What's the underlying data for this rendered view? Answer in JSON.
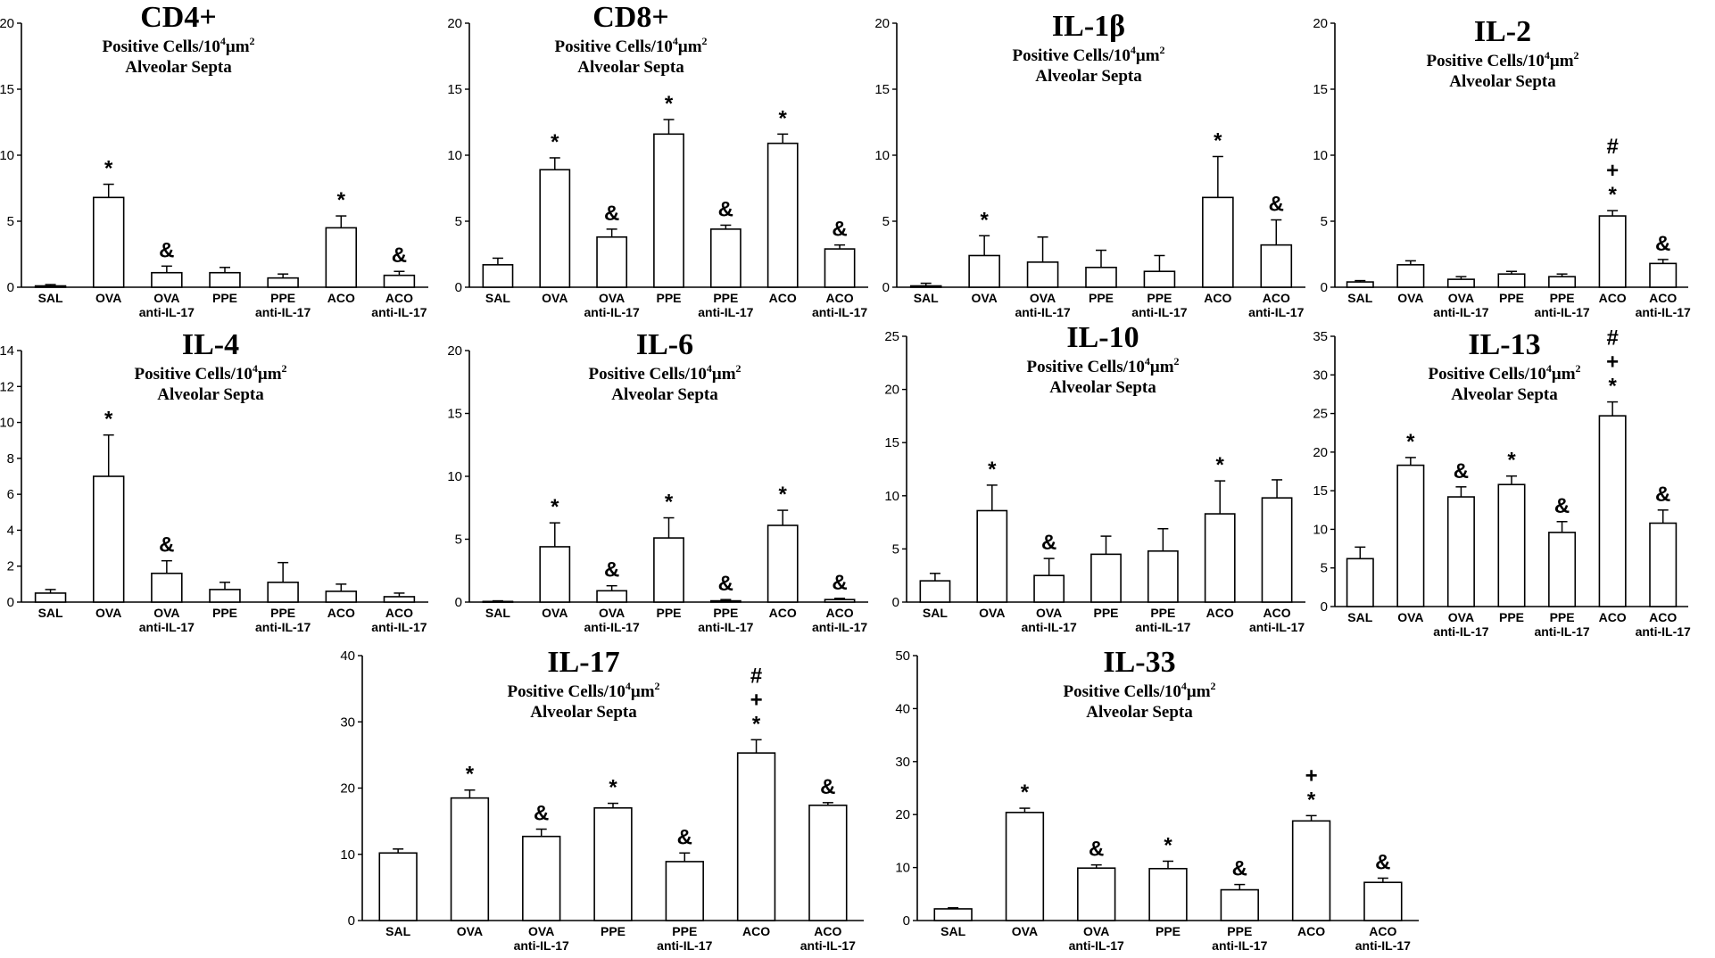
{
  "figure": {
    "subtitle_prefix": "Positive Cells/10",
    "subtitle_exp": "4",
    "subtitle_unit": "μm",
    "subtitle_unit_exp": "2",
    "subtitle_line2": "Alveolar Septa"
  },
  "chart_data": [
    {
      "type": "bar",
      "title": "CD4+",
      "categories": [
        "SAL",
        "OVA",
        "OVA anti-IL-17",
        "PPE",
        "PPE anti-IL-17",
        "ACO",
        "ACO anti-IL-17"
      ],
      "category_lines": [
        [
          "SAL"
        ],
        [
          "OVA"
        ],
        [
          "OVA",
          "anti-IL-17"
        ],
        [
          "PPE"
        ],
        [
          "PPE",
          "anti-IL-17"
        ],
        [
          "ACO"
        ],
        [
          "ACO",
          "anti-IL-17"
        ]
      ],
      "values": [
        0.1,
        6.8,
        1.1,
        1.1,
        0.7,
        4.5,
        0.9
      ],
      "errors": [
        0.1,
        1.0,
        0.5,
        0.4,
        0.3,
        0.9,
        0.3
      ],
      "significance": [
        "",
        "*",
        "&",
        "",
        "",
        "*",
        "&"
      ],
      "ylabel": "Positive Cells/10^4 μm^2 Alveolar Septa",
      "ylim": [
        0,
        20
      ],
      "yticks": [
        0,
        5,
        10,
        15,
        20
      ]
    },
    {
      "type": "bar",
      "title": "CD8+",
      "categories": [
        "SAL",
        "OVA",
        "OVA anti-IL-17",
        "PPE",
        "PPE anti-IL-17",
        "ACO",
        "ACO anti-IL-17"
      ],
      "category_lines": [
        [
          "SAL"
        ],
        [
          "OVA"
        ],
        [
          "OVA",
          "anti-IL-17"
        ],
        [
          "PPE"
        ],
        [
          "PPE",
          "anti-IL-17"
        ],
        [
          "ACO"
        ],
        [
          "ACO",
          "anti-IL-17"
        ]
      ],
      "values": [
        1.7,
        8.9,
        3.8,
        11.6,
        4.4,
        10.9,
        2.9
      ],
      "errors": [
        0.5,
        0.9,
        0.6,
        1.1,
        0.3,
        0.7,
        0.3
      ],
      "significance": [
        "",
        "*",
        "&",
        "*",
        "&",
        "*",
        "&"
      ],
      "ylabel": "Positive Cells/10^4 μm^2 Alveolar Septa",
      "ylim": [
        0,
        20
      ],
      "yticks": [
        0,
        5,
        10,
        15,
        20
      ]
    },
    {
      "type": "bar",
      "title": "IL-1β",
      "categories": [
        "SAL",
        "OVA",
        "OVA anti-IL-17",
        "PPE",
        "PPE anti-IL-17",
        "ACO",
        "ACO anti-IL-17"
      ],
      "category_lines": [
        [
          "SAL"
        ],
        [
          "OVA"
        ],
        [
          "OVA",
          "anti-IL-17"
        ],
        [
          "PPE"
        ],
        [
          "PPE",
          "anti-IL-17"
        ],
        [
          "ACO"
        ],
        [
          "ACO",
          "anti-IL-17"
        ]
      ],
      "values": [
        0.1,
        2.4,
        1.9,
        1.5,
        1.2,
        6.8,
        3.2
      ],
      "errors": [
        0.2,
        1.5,
        1.9,
        1.3,
        1.2,
        3.1,
        1.9
      ],
      "significance": [
        "",
        "*",
        "",
        "",
        "",
        "*",
        "&"
      ],
      "ylabel": "Positive Cells/10^4 μm^2 Alveolar Septa",
      "ylim": [
        0,
        20
      ],
      "yticks": [
        0,
        5,
        10,
        15,
        20
      ]
    },
    {
      "type": "bar",
      "title": "IL-2",
      "categories": [
        "SAL",
        "OVA",
        "OVA anti-IL-17",
        "PPE",
        "PPE anti-IL-17",
        "ACO",
        "ACO anti-IL-17"
      ],
      "category_lines": [
        [
          "SAL"
        ],
        [
          "OVA"
        ],
        [
          "OVA",
          "anti-IL-17"
        ],
        [
          "PPE"
        ],
        [
          "PPE",
          "anti-IL-17"
        ],
        [
          "ACO"
        ],
        [
          "ACO",
          "anti-IL-17"
        ]
      ],
      "values": [
        0.4,
        1.7,
        0.6,
        1.0,
        0.8,
        5.4,
        1.8
      ],
      "errors": [
        0.1,
        0.3,
        0.2,
        0.2,
        0.2,
        0.4,
        0.3
      ],
      "significance": [
        "",
        "",
        "",
        "",
        "",
        "#\n+\n*",
        "&"
      ],
      "ylabel": "Positive Cells/10^4 μm^2 Alveolar Septa",
      "ylim": [
        0,
        20
      ],
      "yticks": [
        0,
        5,
        10,
        15,
        20
      ]
    },
    {
      "type": "bar",
      "title": "IL-4",
      "categories": [
        "SAL",
        "OVA",
        "OVA anti-IL-17",
        "PPE",
        "PPE anti-IL-17",
        "ACO",
        "ACO anti-IL-17"
      ],
      "category_lines": [
        [
          "SAL"
        ],
        [
          "OVA"
        ],
        [
          "OVA",
          "anti-IL-17"
        ],
        [
          "PPE"
        ],
        [
          "PPE",
          "anti-IL-17"
        ],
        [
          "ACO"
        ],
        [
          "ACO",
          "anti-IL-17"
        ]
      ],
      "values": [
        0.5,
        7.0,
        1.6,
        0.7,
        1.1,
        0.6,
        0.3
      ],
      "errors": [
        0.2,
        2.3,
        0.7,
        0.4,
        1.1,
        0.4,
        0.2
      ],
      "significance": [
        "",
        "*",
        "&",
        "",
        "",
        "",
        ""
      ],
      "ylabel": "Positive Cells/10^4 μm^2 Alveolar Septa",
      "ylim": [
        0,
        14
      ],
      "yticks": [
        0,
        2,
        4,
        6,
        8,
        10,
        12,
        14
      ]
    },
    {
      "type": "bar",
      "title": "IL-6",
      "categories": [
        "SAL",
        "OVA",
        "OVA anti-IL-17",
        "PPE",
        "PPE anti-IL-17",
        "ACO",
        "ACO anti-IL-17"
      ],
      "category_lines": [
        [
          "SAL"
        ],
        [
          "OVA"
        ],
        [
          "OVA",
          "anti-IL-17"
        ],
        [
          "PPE"
        ],
        [
          "PPE",
          "anti-IL-17"
        ],
        [
          "ACO"
        ],
        [
          "ACO",
          "anti-IL-17"
        ]
      ],
      "values": [
        0.05,
        4.4,
        0.9,
        5.1,
        0.1,
        6.1,
        0.2
      ],
      "errors": [
        0.05,
        1.9,
        0.4,
        1.6,
        0.1,
        1.2,
        0.1
      ],
      "significance": [
        "",
        "*",
        "&",
        "*",
        "&",
        "*",
        "&"
      ],
      "ylabel": "Positive Cells/10^4 μm^2 Alveolar Septa",
      "ylim": [
        0,
        20
      ],
      "yticks": [
        0,
        5,
        10,
        15,
        20
      ]
    },
    {
      "type": "bar",
      "title": "IL-10",
      "categories": [
        "SAL",
        "OVA",
        "OVA anti-IL-17",
        "PPE",
        "PPE anti-IL-17",
        "ACO",
        "ACO anti-IL-17"
      ],
      "category_lines": [
        [
          "SAL"
        ],
        [
          "OVA"
        ],
        [
          "OVA",
          "anti-IL-17"
        ],
        [
          "PPE"
        ],
        [
          "PPE",
          "anti-IL-17"
        ],
        [
          "ACO"
        ],
        [
          "ACO",
          "anti-IL-17"
        ]
      ],
      "values": [
        2.0,
        8.6,
        2.5,
        4.5,
        4.8,
        8.3,
        9.8
      ],
      "errors": [
        0.7,
        2.4,
        1.6,
        1.7,
        2.1,
        3.1,
        1.7
      ],
      "significance": [
        "",
        "*",
        "&",
        "",
        "",
        "*",
        ""
      ],
      "ylabel": "Positive Cells/10^4 μm^2 Alveolar Septa",
      "ylim": [
        0,
        25
      ],
      "yticks": [
        0,
        5,
        10,
        15,
        20,
        25
      ]
    },
    {
      "type": "bar",
      "title": "IL-13",
      "categories": [
        "SAL",
        "OVA",
        "OVA anti-IL-17",
        "PPE",
        "PPE anti-IL-17",
        "ACO",
        "ACO anti-IL-17"
      ],
      "category_lines": [
        [
          "SAL"
        ],
        [
          "OVA"
        ],
        [
          "OVA",
          "anti-IL-17"
        ],
        [
          "PPE"
        ],
        [
          "PPE",
          "anti-IL-17"
        ],
        [
          "ACO"
        ],
        [
          "ACO",
          "anti-IL-17"
        ]
      ],
      "values": [
        6.2,
        18.3,
        14.2,
        15.8,
        9.6,
        24.7,
        10.8
      ],
      "errors": [
        1.5,
        1.0,
        1.3,
        1.1,
        1.4,
        1.8,
        1.7
      ],
      "significance": [
        "",
        "*",
        "&",
        "*",
        "&",
        "#\n+\n*",
        "&"
      ],
      "ylabel": "Positive Cells/10^4 μm^2 Alveolar Septa",
      "ylim": [
        0,
        35
      ],
      "yticks": [
        0,
        5,
        10,
        15,
        20,
        25,
        30,
        35
      ]
    },
    {
      "type": "bar",
      "title": "IL-17",
      "categories": [
        "SAL",
        "OVA",
        "OVA anti-IL-17",
        "PPE",
        "PPE anti-IL-17",
        "ACO",
        "ACO anti-IL-17"
      ],
      "category_lines": [
        [
          "SAL"
        ],
        [
          "OVA"
        ],
        [
          "OVA",
          "anti-IL-17"
        ],
        [
          "PPE"
        ],
        [
          "PPE",
          "anti-IL-17"
        ],
        [
          "ACO"
        ],
        [
          "ACO",
          "anti-IL-17"
        ]
      ],
      "values": [
        10.2,
        18.5,
        12.7,
        17.0,
        8.9,
        25.3,
        17.4
      ],
      "errors": [
        0.6,
        1.2,
        1.1,
        0.7,
        1.3,
        2.0,
        0.4
      ],
      "significance": [
        "",
        "*",
        "&",
        "*",
        "&",
        "#\n+\n*",
        "&"
      ],
      "ylabel": "Positive Cells/10^4 μm^2 Alveolar Septa",
      "ylim": [
        0,
        40
      ],
      "yticks": [
        0,
        10,
        20,
        30,
        40
      ]
    },
    {
      "type": "bar",
      "title": "IL-33",
      "categories": [
        "SAL",
        "OVA",
        "OVA anti-IL-17",
        "PPE",
        "PPE anti-IL-17",
        "ACO",
        "ACO anti-IL-17"
      ],
      "category_lines": [
        [
          "SAL"
        ],
        [
          "OVA"
        ],
        [
          "OVA",
          "anti-IL-17"
        ],
        [
          "PPE"
        ],
        [
          "PPE",
          "anti-IL-17"
        ],
        [
          "ACO"
        ],
        [
          "ACO",
          "anti-IL-17"
        ]
      ],
      "values": [
        2.2,
        20.4,
        9.9,
        9.8,
        5.8,
        18.8,
        7.2
      ],
      "errors": [
        0.2,
        0.8,
        0.6,
        1.4,
        1.0,
        1.0,
        0.8
      ],
      "significance": [
        "",
        "*",
        "&",
        "*",
        "&",
        "+\n*",
        "&"
      ],
      "ylabel": "Positive Cells/10^4 μm^2 Alveolar Septa",
      "ylim": [
        0,
        50
      ],
      "yticks": [
        0,
        10,
        20,
        30,
        40,
        50
      ]
    }
  ]
}
